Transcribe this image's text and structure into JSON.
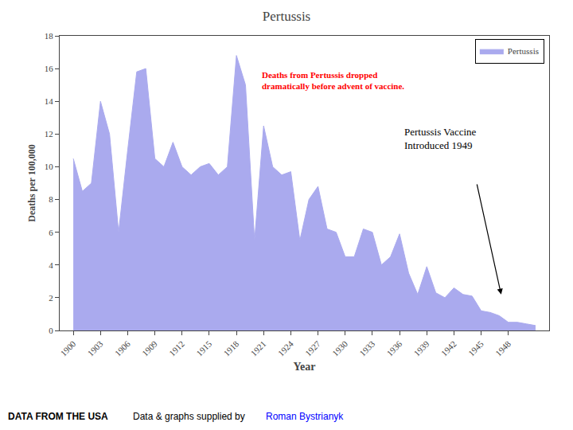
{
  "chart_data": {
    "type": "area",
    "title": "Pertussis",
    "x_label": "Year",
    "y_label": "Deaths per 100,000",
    "x": [
      1900,
      1901,
      1902,
      1903,
      1904,
      1905,
      1906,
      1907,
      1908,
      1909,
      1910,
      1911,
      1912,
      1913,
      1914,
      1915,
      1916,
      1917,
      1918,
      1919,
      1920,
      1921,
      1922,
      1923,
      1924,
      1925,
      1926,
      1927,
      1928,
      1929,
      1930,
      1931,
      1932,
      1933,
      1934,
      1935,
      1936,
      1937,
      1938,
      1939,
      1940,
      1941,
      1942,
      1943,
      1944,
      1945,
      1946,
      1947,
      1948,
      1949,
      1950,
      1951
    ],
    "series": [
      {
        "name": "Pertussis",
        "color": "#aaaaee",
        "values": [
          10.5,
          8.5,
          9.0,
          14.0,
          12.0,
          6.0,
          11.0,
          15.8,
          16.0,
          10.5,
          10.0,
          11.5,
          10.0,
          9.5,
          10.0,
          10.2,
          9.5,
          10.0,
          16.8,
          15.0,
          5.5,
          12.5,
          10.0,
          9.5,
          9.7,
          5.5,
          8.0,
          8.8,
          6.2,
          6.0,
          4.5,
          4.5,
          6.2,
          6.0,
          4.0,
          4.5,
          5.9,
          3.5,
          2.2,
          3.9,
          2.3,
          2.0,
          2.6,
          2.2,
          2.1,
          1.2,
          1.1,
          0.9,
          0.5,
          0.5,
          0.4,
          0.3
        ]
      }
    ],
    "xlim": [
      1898.5,
      1952.5
    ],
    "xticks": [
      1900,
      1903,
      1906,
      1909,
      1912,
      1915,
      1918,
      1921,
      1924,
      1927,
      1930,
      1933,
      1936,
      1939,
      1942,
      1945,
      1948
    ],
    "ylim": [
      0,
      18
    ],
    "yticks": [
      0,
      2,
      4,
      6,
      8,
      10,
      12,
      14,
      16,
      18
    ],
    "grid": false,
    "legend": "upper right",
    "annotations": [
      {
        "text": "Deaths from Pertussis dropped\ndramatically before advent of vaccine.",
        "color": "red"
      },
      {
        "text": "Pertussis Vaccine\nIntroduced 1949"
      },
      {
        "text": "DATA FROM THE USA"
      },
      {
        "text": "Data & graphs supplied by "
      },
      {
        "text": "Roman Bystrianyk",
        "color": "blue"
      }
    ]
  }
}
